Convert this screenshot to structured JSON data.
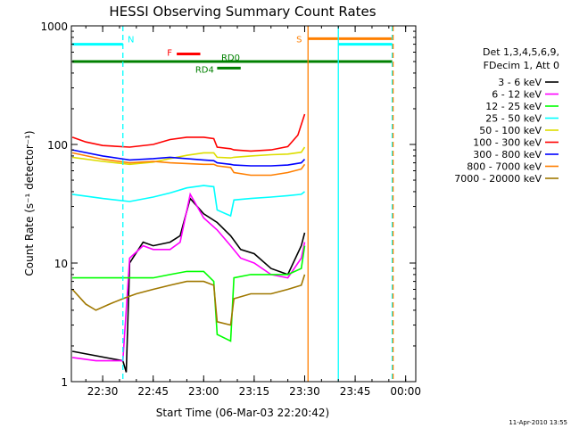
{
  "chart_data": {
    "type": "line",
    "title": "HESSI Observing Summary Count Rates",
    "xlabel": "Start Time (06-Mar-03 22:20:42)",
    "ylabel": "Count Rate (s⁻¹ detector⁻¹)",
    "xlim": [
      "22:20:42",
      "00:03"
    ],
    "ylim": [
      1,
      1000
    ],
    "y_scale": "log",
    "x_ticks": [
      "22:30",
      "22:45",
      "23:00",
      "23:15",
      "23:30",
      "23:45",
      "00:00"
    ],
    "y_ticks": [
      "1",
      "10",
      "100",
      "1000"
    ],
    "footer": "11-Apr-2010 13:55",
    "legend": {
      "placement": "right",
      "header": [
        "Det 1,3,4,5,6,9,",
        "FDecim 1, Att 0"
      ]
    },
    "series": [
      {
        "name": "3 - 6 keV",
        "color": "#000000",
        "x": [
          "22:21",
          "22:36",
          "22:37",
          "22:38",
          "22:42",
          "22:45",
          "22:50",
          "22:53",
          "22:56",
          "23:00",
          "23:04",
          "23:08",
          "23:11",
          "23:15",
          "23:20",
          "23:25",
          "23:29",
          "23:30"
        ],
        "y": [
          1.8,
          1.5,
          1.2,
          10,
          15,
          14,
          15,
          17,
          35,
          26,
          22,
          17,
          13,
          12,
          9,
          8,
          14,
          18
        ]
      },
      {
        "name": "6 - 12 keV",
        "color": "#ff00ff",
        "x": [
          "22:21",
          "22:28",
          "22:36",
          "22:38",
          "22:42",
          "22:45",
          "22:50",
          "22:53",
          "22:56",
          "23:00",
          "23:04",
          "23:08",
          "23:11",
          "23:15",
          "23:20",
          "23:25",
          "23:29",
          "23:30"
        ],
        "y": [
          1.6,
          1.5,
          1.5,
          11,
          14,
          13,
          13,
          15,
          38,
          24,
          19,
          14,
          11,
          10,
          8,
          7.5,
          11,
          15
        ]
      },
      {
        "name": "12 - 25 keV",
        "color": "#00ff00",
        "x": [
          "22:21",
          "22:30",
          "22:38",
          "22:45",
          "22:50",
          "22:55",
          "23:00",
          "23:03",
          "23:04",
          "23:08",
          "23:09",
          "23:14",
          "23:20",
          "23:25",
          "23:29",
          "23:30"
        ],
        "y": [
          7.5,
          7.5,
          7.5,
          7.5,
          8,
          8.5,
          8.5,
          7,
          2.5,
          2.2,
          7.5,
          8,
          8,
          8,
          9,
          14
        ]
      },
      {
        "name": "25 - 50 keV",
        "color": "#00ffff",
        "x": [
          "22:21",
          "22:30",
          "22:38",
          "22:45",
          "22:50",
          "22:55",
          "23:00",
          "23:03",
          "23:04",
          "23:08",
          "23:09",
          "23:14",
          "23:20",
          "23:25",
          "23:29",
          "23:30"
        ],
        "y": [
          38,
          35,
          33,
          36,
          39,
          43,
          45,
          44,
          28,
          25,
          34,
          35,
          36,
          37,
          38,
          40
        ]
      },
      {
        "name": "50 - 100 keV",
        "color": "#dddd00",
        "x": [
          "22:21",
          "22:30",
          "22:38",
          "22:45",
          "22:50",
          "22:55",
          "23:00",
          "23:03",
          "23:04",
          "23:08",
          "23:09",
          "23:14",
          "23:20",
          "23:25",
          "23:29",
          "23:30"
        ],
        "y": [
          78,
          72,
          68,
          71,
          76,
          81,
          85,
          85,
          78,
          77,
          78,
          80,
          82,
          83,
          86,
          95
        ]
      },
      {
        "name": "100 - 300 keV",
        "color": "#ff0000",
        "x": [
          "22:21",
          "22:25",
          "22:30",
          "22:38",
          "22:45",
          "22:50",
          "22:55",
          "23:00",
          "23:03",
          "23:04",
          "23:08",
          "23:09",
          "23:14",
          "23:20",
          "23:25",
          "23:28",
          "23:30"
        ],
        "y": [
          115,
          105,
          98,
          95,
          100,
          110,
          115,
          115,
          112,
          95,
          92,
          90,
          88,
          90,
          96,
          120,
          180
        ]
      },
      {
        "name": "300 - 800 keV",
        "color": "#0000ff",
        "x": [
          "22:21",
          "22:30",
          "22:38",
          "22:45",
          "22:50",
          "22:55",
          "23:00",
          "23:03",
          "23:04",
          "23:08",
          "23:09",
          "23:14",
          "23:20",
          "23:25",
          "23:29",
          "23:30"
        ],
        "y": [
          90,
          80,
          74,
          76,
          78,
          76,
          74,
          73,
          70,
          68,
          67,
          66,
          66,
          67,
          70,
          75
        ]
      },
      {
        "name": "800 - 7000 keV",
        "color": "#ff7f00",
        "x": [
          "22:21",
          "22:30",
          "22:38",
          "22:45",
          "22:50",
          "22:55",
          "23:00",
          "23:03",
          "23:04",
          "23:08",
          "23:09",
          "23:14",
          "23:20",
          "23:25",
          "23:29",
          "23:30"
        ],
        "y": [
          85,
          75,
          70,
          72,
          70,
          69,
          68,
          68,
          66,
          64,
          58,
          55,
          55,
          58,
          62,
          68
        ]
      },
      {
        "name": "7000 - 20000 keV",
        "color": "#a07800",
        "x": [
          "22:21",
          "22:25",
          "22:28",
          "22:32",
          "22:36",
          "22:40",
          "22:45",
          "22:50",
          "22:55",
          "23:00",
          "23:03",
          "23:04",
          "23:08",
          "23:09",
          "23:14",
          "23:20",
          "23:25",
          "23:29",
          "23:30"
        ],
        "y": [
          6,
          4.5,
          4,
          4.5,
          5,
          5.5,
          6,
          6.5,
          7,
          7,
          6.5,
          3.2,
          3,
          5,
          5.5,
          5.5,
          6,
          6.5,
          8
        ]
      }
    ],
    "vertical_lines": [
      {
        "x": "22:36",
        "color": "#00ffff",
        "style": "dashed"
      },
      {
        "x": "23:31",
        "color": "#ff7f00",
        "style": "solid"
      },
      {
        "x": "23:40",
        "color": "#00ffff",
        "style": "solid"
      },
      {
        "x": "23:56",
        "color": "#00ffff",
        "style": "dashed"
      },
      {
        "x": "23:56",
        "color": "#ff7f00",
        "style": "dashed"
      }
    ],
    "flag_bars": [
      {
        "label": "N",
        "color": "#00ffff",
        "x_start": "22:21",
        "x_end": "22:36",
        "level": 700
      },
      {
        "label": "",
        "color": "#00ffff",
        "x_start": "23:40",
        "x_end": "23:56",
        "level": 700
      },
      {
        "label": "S",
        "color": "#ff7f00",
        "x_start": "23:31",
        "x_end": "23:56",
        "level": 780
      },
      {
        "label": "F",
        "color": "#ff0000",
        "x_start": "22:52",
        "x_end": "22:59",
        "level": 580
      },
      {
        "label": "RD0",
        "color": "#008000",
        "x_start": "22:21",
        "x_end": "23:56",
        "level": 500
      },
      {
        "label": "RD4",
        "color": "#008000",
        "x_start": "23:04",
        "x_end": "23:11",
        "level": 440
      }
    ]
  }
}
